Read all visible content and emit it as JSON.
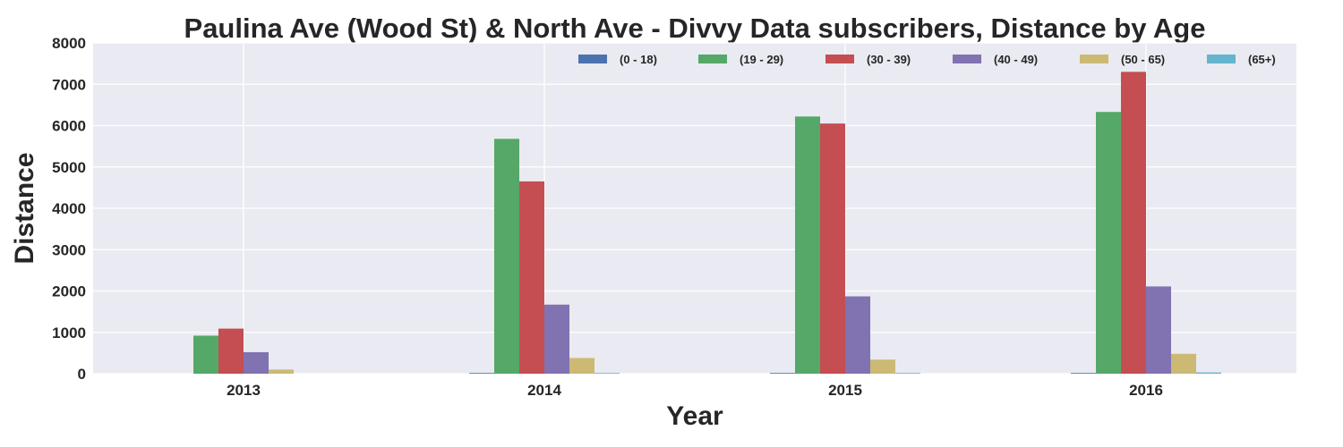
{
  "chart_data": {
    "type": "bar",
    "title": "Paulina  Ave (Wood St) & North Ave - Divvy Data subscribers, Distance by Age",
    "xlabel": "Year",
    "ylabel": "Distance",
    "categories": [
      "2013",
      "2014",
      "2015",
      "2016"
    ],
    "ylim": [
      0,
      8000
    ],
    "yticks": [
      0,
      1000,
      2000,
      3000,
      4000,
      5000,
      6000,
      7000,
      8000
    ],
    "grid": true,
    "legend_position": "top-right",
    "series": [
      {
        "name": "(0 - 18)",
        "color": "#4c72b0",
        "values": [
          0,
          15,
          15,
          15
        ]
      },
      {
        "name": "(19 - 29)",
        "color": "#55a868",
        "values": [
          920,
          5680,
          6220,
          6330
        ]
      },
      {
        "name": "(30 - 39)",
        "color": "#c44e52",
        "values": [
          1090,
          4650,
          6050,
          7300
        ]
      },
      {
        "name": "(40 - 49)",
        "color": "#8172b2",
        "values": [
          520,
          1670,
          1870,
          2110
        ]
      },
      {
        "name": "(50 - 65)",
        "color": "#ccb974",
        "values": [
          100,
          380,
          340,
          480
        ]
      },
      {
        "name": "(65+)",
        "color": "#64b5cd",
        "values": [
          0,
          12,
          12,
          30
        ]
      }
    ]
  }
}
